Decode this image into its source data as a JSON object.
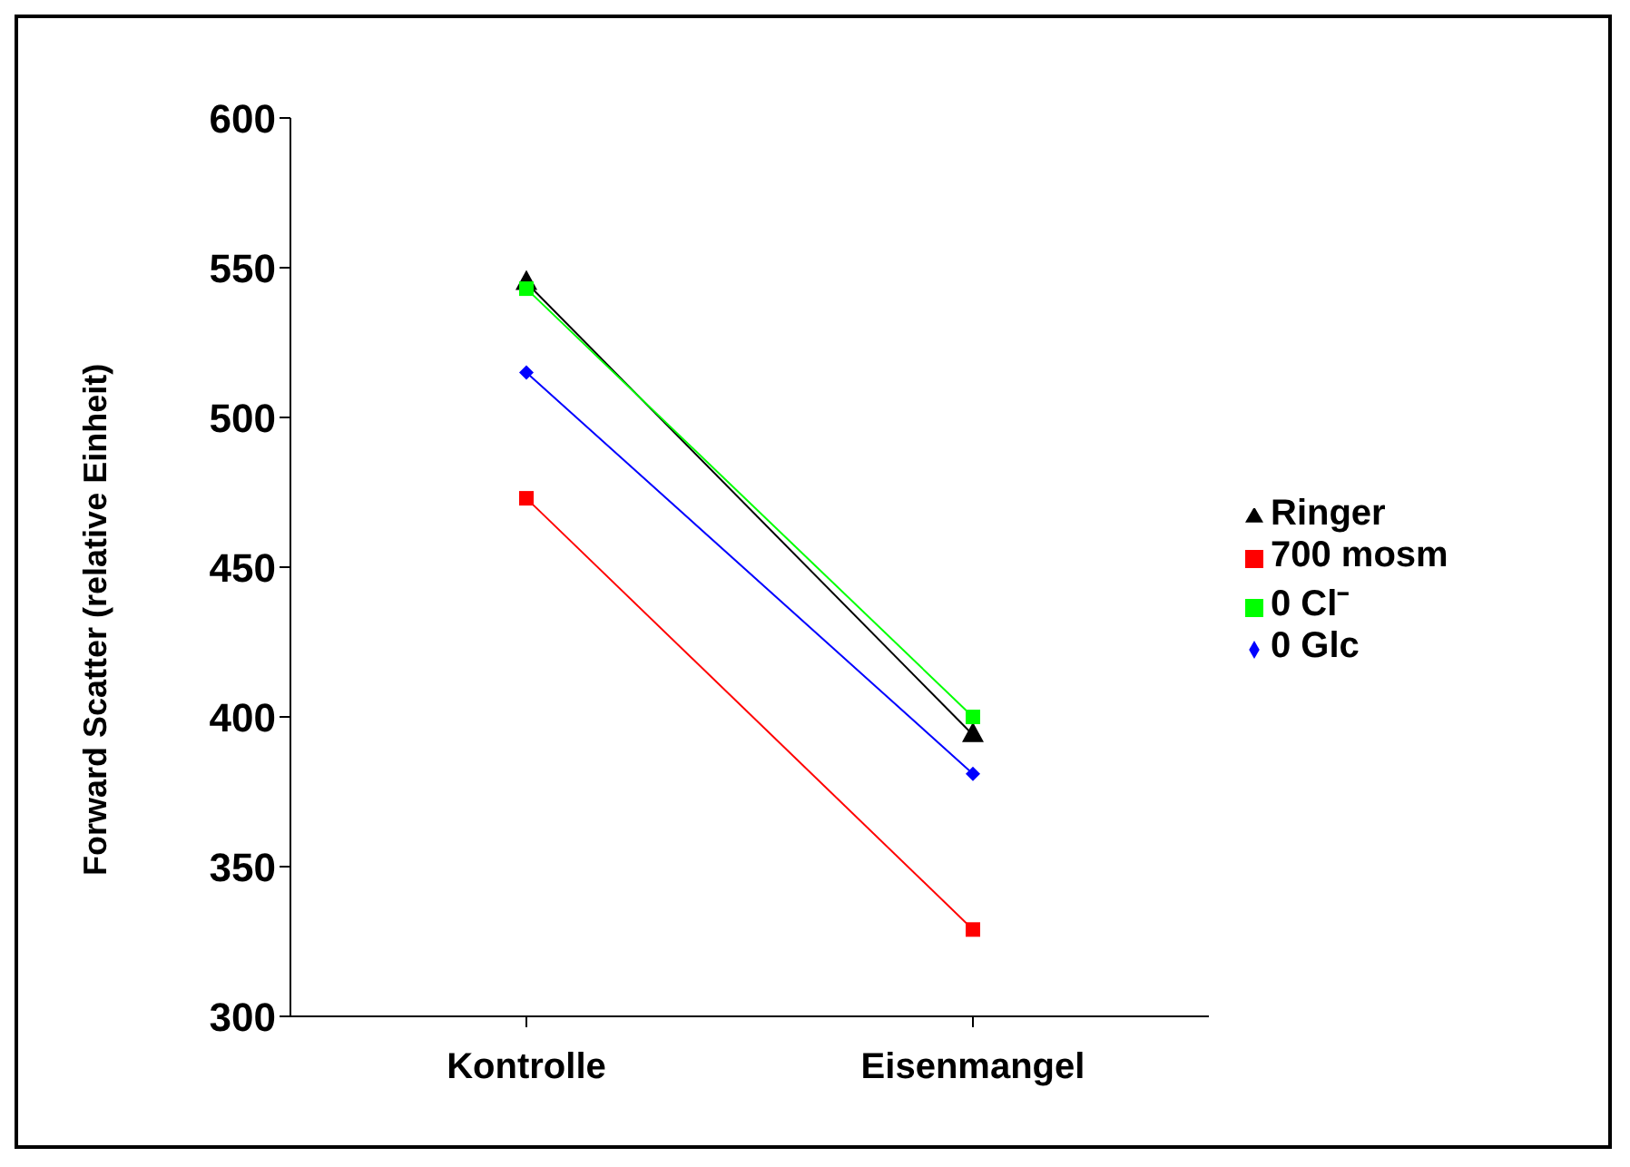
{
  "chart_data": {
    "type": "line",
    "ylabel": "Forward Scatter (relative Einheit)",
    "categories": [
      "Kontrolle",
      "Eisenmangel"
    ],
    "ylim": [
      300,
      600
    ],
    "yticks": [
      300,
      350,
      400,
      450,
      500,
      550,
      600
    ],
    "grid": false,
    "legend": "right",
    "series": [
      {
        "name": "Ringer",
        "color": "#000000",
        "marker": "triangle",
        "values": [
          545,
          394
        ]
      },
      {
        "name": "700 mosm",
        "color": "#ff0000",
        "marker": "square",
        "values": [
          473,
          329
        ]
      },
      {
        "name": "0 Cl⁻",
        "color": "#00ff00",
        "marker": "square",
        "values": [
          543,
          400
        ]
      },
      {
        "name": "0 Glc",
        "color": "#0000ff",
        "marker": "diamond",
        "values": [
          515,
          381
        ]
      }
    ]
  }
}
